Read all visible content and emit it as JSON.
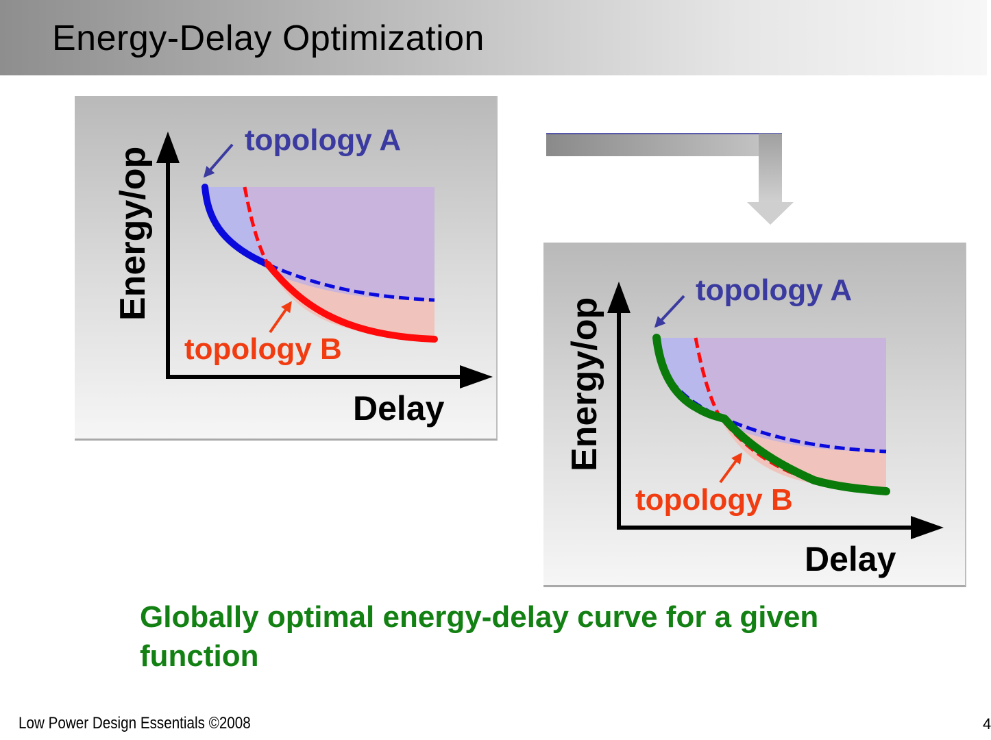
{
  "slide": {
    "title": "Energy-Delay Optimization",
    "caption": "Globally optimal energy-delay curve for a given function",
    "footer": "Low Power Design Essentials ©2008",
    "page_number": "4"
  },
  "diagrams": [
    {
      "id": "left",
      "y_axis_label": "Energy/op",
      "x_axis_label": "Delay",
      "curve_a_label": "topology A",
      "curve_b_label": "topology B",
      "shows_global_optimum": false
    },
    {
      "id": "right",
      "y_axis_label": "Energy/op",
      "x_axis_label": "Delay",
      "curve_a_label": "topology A",
      "curve_b_label": "topology B",
      "shows_global_optimum": true
    }
  ],
  "colors": {
    "topology_a": "#0a0adc",
    "topology_a_label": "#3a3aa0",
    "topology_b": "#ff0a0a",
    "topology_b_label": "#f03c10",
    "global_optimum": "#0a7a0a",
    "caption": "#128012",
    "region_a": "#b8b8ec",
    "region_b": "#f0c4bc",
    "region_overlap": "#c8b4dc"
  },
  "icons": {
    "flow_arrow": "elbow-down-arrow-icon",
    "axis_arrows": "arrowhead-icon"
  }
}
